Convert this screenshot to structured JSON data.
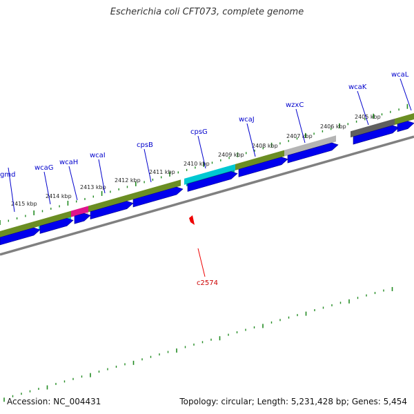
{
  "header": {
    "title": "Escherichia coli CFT073, complete genome"
  },
  "footer": {
    "accession": "Accession: NC_004431",
    "topology": "Topology: circular; Length: 5,231,428 bp; Genes: 5,454"
  },
  "colors": {
    "forward_cds": "#0000ee",
    "ruler": "#228b22",
    "backbone": "#808080",
    "olive": "#6b8e23",
    "cyan": "#00c8d2",
    "magenta": "#e0148c",
    "gray": "#b4b4b4",
    "darkgray": "#606060",
    "marker": "#ee0000"
  },
  "scale_labels": [
    "2415 kbp",
    "2414 kbp",
    "2413 kbp",
    "2412 kbp",
    "2411 kbp",
    "2410 kbp",
    "2409 kbp",
    "2408 kbp",
    "2407 kbp",
    "2406 kbp",
    "2405 kbp"
  ],
  "gene_labels": [
    "gmd",
    "wcaG",
    "wcaH",
    "wcaI",
    "cpsB",
    "cpsG",
    "wcaJ",
    "wzxC",
    "wcaK",
    "wcaL"
  ],
  "marker": {
    "label": "c2574"
  }
}
